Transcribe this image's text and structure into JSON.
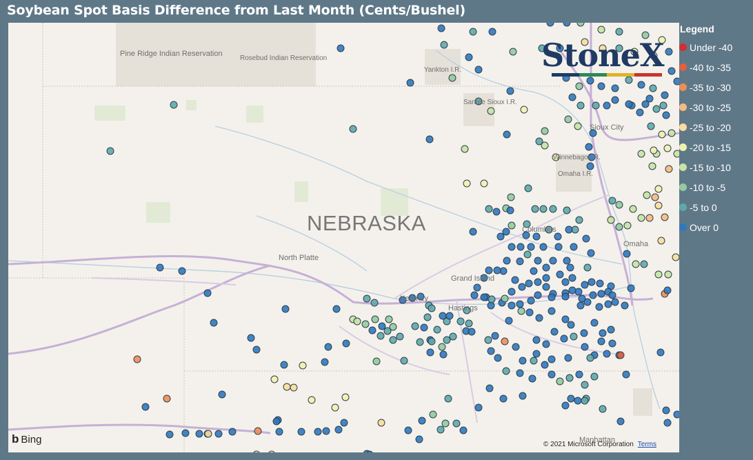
{
  "title": "Soybean Spot Basis Difference from Last Month (Cents/Bushel)",
  "legend": {
    "title": "Legend",
    "items": [
      {
        "label": "Under -40",
        "color": "#d42e2e"
      },
      {
        "label": "-40 to -35",
        "color": "#e4603c"
      },
      {
        "label": "-35 to -30",
        "color": "#ee8d58"
      },
      {
        "label": "-30 to -25",
        "color": "#f6bb7e"
      },
      {
        "label": "-25 to -20",
        "color": "#fadc9c"
      },
      {
        "label": "-20 to -15",
        "color": "#f0f2b0"
      },
      {
        "label": "-15 to -10",
        "color": "#c8e3a4"
      },
      {
        "label": "-10 to -5",
        "color": "#94caa0"
      },
      {
        "label": "-5 to 0",
        "color": "#5ea8ac"
      },
      {
        "label": "Over 0",
        "color": "#2f78c0"
      }
    ]
  },
  "map": {
    "state_label": "NEBRASKA",
    "places": [
      {
        "name": "Pine Ridge Indian Reservation"
      },
      {
        "name": "Rosebud Indian Reservation"
      },
      {
        "name": "Yankton I.R."
      },
      {
        "name": "Santee Sioux I.R."
      },
      {
        "name": "Sioux City"
      },
      {
        "name": "Winnebago I.R."
      },
      {
        "name": "Omaha I.R."
      },
      {
        "name": "Columbus"
      },
      {
        "name": "Omaha"
      },
      {
        "name": "North Platte"
      },
      {
        "name": "Grand Island"
      },
      {
        "name": "Kearney"
      },
      {
        "name": "Hastings"
      },
      {
        "name": "Manhattan"
      }
    ],
    "attribution": {
      "bing": "Bing",
      "copyright": "© 2021 Microsoft Corporation",
      "terms": "Terms"
    },
    "logo": {
      "text": "StoneX"
    }
  }
}
